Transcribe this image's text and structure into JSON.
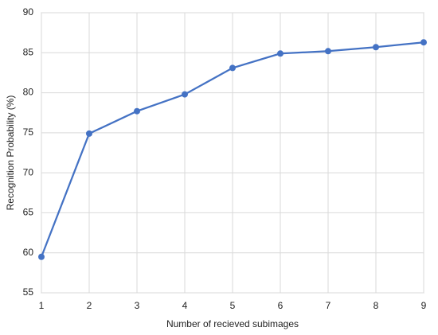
{
  "chart_data": {
    "type": "line",
    "xlabel": "Number of recieved subimages",
    "ylabel": "Recognition Probability (%)",
    "x": [
      1,
      2,
      3,
      4,
      5,
      6,
      7,
      8,
      9
    ],
    "values": [
      59.5,
      74.9,
      77.7,
      79.8,
      83.1,
      84.9,
      85.2,
      85.7,
      86.3
    ],
    "color": "#4472c4",
    "xlim": [
      1,
      9
    ],
    "xticks": [
      1,
      2,
      3,
      4,
      5,
      6,
      7,
      8,
      9
    ],
    "ylim": [
      55,
      90
    ],
    "yticks": [
      55,
      60,
      65,
      70,
      75,
      80,
      85,
      90
    ],
    "grid": true
  }
}
